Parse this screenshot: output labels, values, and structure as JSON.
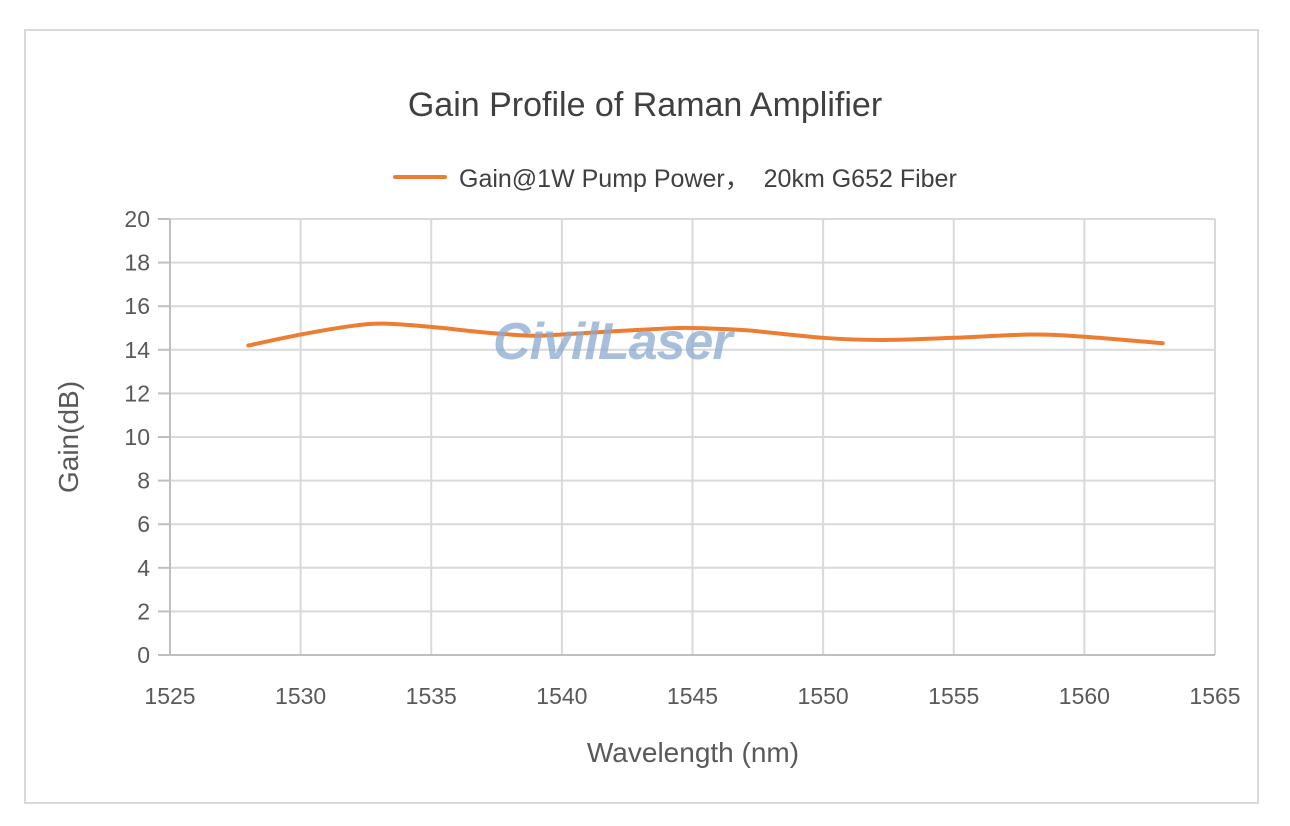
{
  "chart_data": {
    "type": "line",
    "title": "Gain Profile of Raman Amplifier",
    "xlabel": "Wavelength (nm)",
    "ylabel": "Gain(dB)",
    "xlim": [
      1525,
      1565
    ],
    "ylim": [
      0,
      20
    ],
    "xticks": [
      1525,
      1530,
      1535,
      1540,
      1545,
      1550,
      1555,
      1560,
      1565
    ],
    "yticks": [
      0,
      2,
      4,
      6,
      8,
      10,
      12,
      14,
      16,
      18,
      20
    ],
    "grid": true,
    "legend_position": "top",
    "series": [
      {
        "name": "Gain@1W Pump Power，  20km G652 Fiber",
        "color": "#ED7D31",
        "x": [
          1528,
          1530,
          1532,
          1533.2,
          1535,
          1537,
          1538.8,
          1540,
          1542,
          1544,
          1545,
          1547,
          1550,
          1552.2,
          1555,
          1558,
          1560,
          1563
        ],
        "y": [
          14.2,
          14.7,
          15.1,
          15.2,
          15.05,
          14.8,
          14.65,
          14.7,
          14.85,
          14.98,
          15.0,
          14.9,
          14.55,
          14.45,
          14.55,
          14.7,
          14.6,
          14.3
        ]
      }
    ]
  },
  "header": {
    "title": "Gain Profile of Raman Amplifier",
    "legend_label": "Gain@1W Pump Power，  20km G652 Fiber"
  },
  "axes": {
    "x_title": "Wavelength (nm)",
    "y_title": "Gain(dB)",
    "x_tick_labels": [
      "1525",
      "1530",
      "1535",
      "1540",
      "1545",
      "1550",
      "1555",
      "1560",
      "1565"
    ],
    "y_tick_labels": [
      "0",
      "2",
      "4",
      "6",
      "8",
      "10",
      "12",
      "14",
      "16",
      "18",
      "20"
    ]
  },
  "watermark": {
    "text": "CivilLaser"
  },
  "colors": {
    "line": "#ED7D31",
    "grid": "#d9d9d9",
    "text": "#595959",
    "watermark": "#9fb8d6"
  }
}
